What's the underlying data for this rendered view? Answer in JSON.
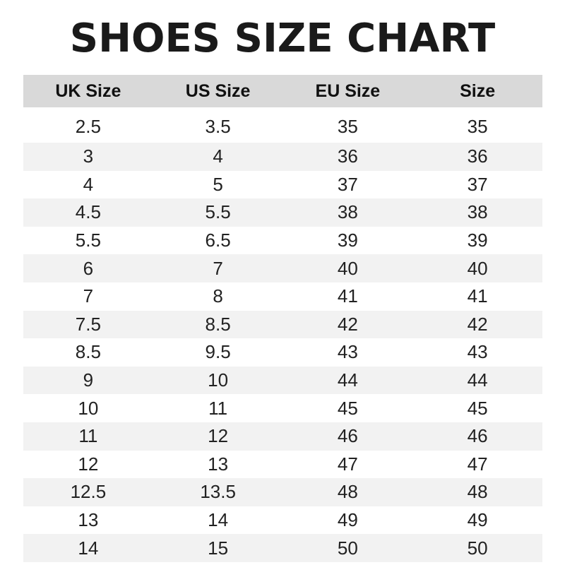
{
  "title": "SHOES SIZE CHART",
  "headers": [
    "UK Size",
    "US Size",
    "EU Size",
    "Size"
  ],
  "rows": [
    [
      "2.5",
      "3.5",
      "35",
      "35"
    ],
    [
      "3",
      "4",
      "36",
      "36"
    ],
    [
      "4",
      "5",
      "37",
      "37"
    ],
    [
      "4.5",
      "5.5",
      "38",
      "38"
    ],
    [
      "5.5",
      "6.5",
      "39",
      "39"
    ],
    [
      "6",
      "7",
      "40",
      "40"
    ],
    [
      "7",
      "8",
      "41",
      "41"
    ],
    [
      "7.5",
      "8.5",
      "42",
      "42"
    ],
    [
      "8.5",
      "9.5",
      "43",
      "43"
    ],
    [
      "9",
      "10",
      "44",
      "44"
    ],
    [
      "10",
      "11",
      "45",
      "45"
    ],
    [
      "11",
      "12",
      "46",
      "46"
    ],
    [
      "12",
      "13",
      "47",
      "47"
    ],
    [
      "12.5",
      "13.5",
      "48",
      "48"
    ],
    [
      "13",
      "14",
      "49",
      "49"
    ],
    [
      "14",
      "15",
      "50",
      "50"
    ]
  ],
  "colors": {
    "header_bg": "#d9d9d9",
    "stripe_bg": "#f2f2f2"
  }
}
